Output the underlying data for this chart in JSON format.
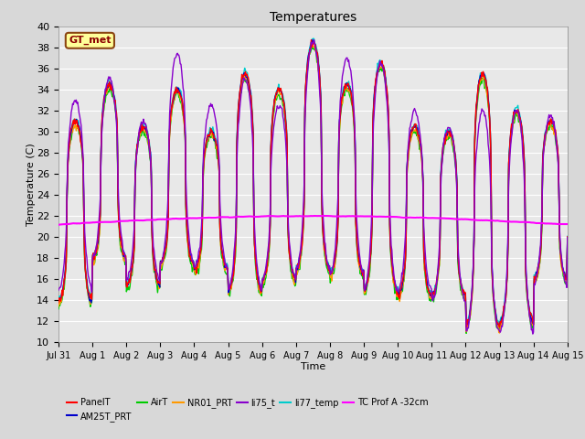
{
  "title": "Temperatures",
  "xlabel": "Time",
  "ylabel": "Temperature (C)",
  "ylim": [
    10,
    40
  ],
  "yticks": [
    10,
    12,
    14,
    16,
    18,
    20,
    22,
    24,
    26,
    28,
    30,
    32,
    34,
    36,
    38,
    40
  ],
  "xtick_labels": [
    "Jul 31",
    "Aug 1",
    "Aug 2",
    "Aug 3",
    "Aug 4",
    "Aug 5",
    "Aug 6",
    "Aug 7",
    "Aug 8",
    "Aug 9",
    "Aug 10",
    "Aug 11",
    "Aug 12",
    "Aug 13",
    "Aug 14",
    "Aug 15"
  ],
  "series": {
    "PanelT": {
      "color": "#FF0000",
      "lw": 1.0
    },
    "AM25T_PRT": {
      "color": "#0000CC",
      "lw": 1.0
    },
    "AirT": {
      "color": "#00CC00",
      "lw": 1.0
    },
    "NR01_PRT": {
      "color": "#FF9900",
      "lw": 1.0
    },
    "li75_t": {
      "color": "#8800CC",
      "lw": 1.0
    },
    "li77_temp": {
      "color": "#00CCCC",
      "lw": 1.0
    },
    "TC Prof A -32cm": {
      "color": "#FF00FF",
      "lw": 1.5
    }
  },
  "background_color": "#D8D8D8",
  "plot_bg_color": "#E8E8E8",
  "annotation_text": "GT_met",
  "grid_color": "#FFFFFF",
  "legend_ncol": 6,
  "legend_row2": "TC Prof A -32cm"
}
